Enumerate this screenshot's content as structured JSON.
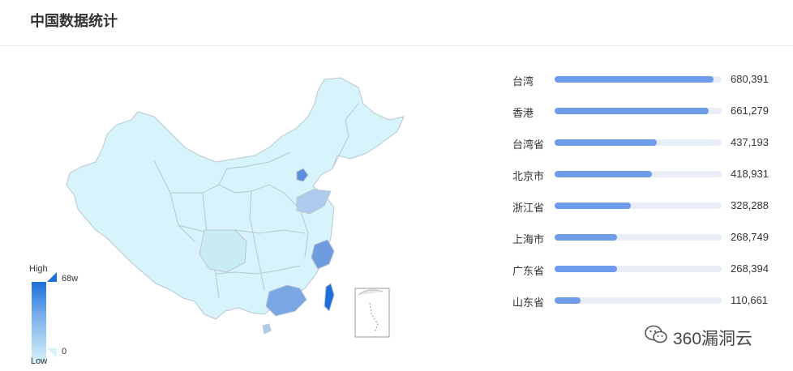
{
  "header": {
    "title": "中国数据统计"
  },
  "legend": {
    "high_label": "High",
    "low_label": "Low",
    "max_value": "68w",
    "min_value": "0"
  },
  "colors": {
    "bar_fill": "#6f9cea",
    "bar_track": "#e9edf6",
    "map_low": "#d7f3fb",
    "map_high": "#1e6fd9"
  },
  "chart_data": {
    "type": "bar",
    "title": "",
    "categories": [
      "台湾",
      "香港",
      "台湾省",
      "北京市",
      "浙江省",
      "上海市",
      "广东省",
      "山东省"
    ],
    "values": [
      680391,
      661279,
      437193,
      418931,
      328288,
      268749,
      268394,
      110661
    ],
    "value_labels": [
      "680,391",
      "661,279",
      "437,193",
      "418,931",
      "328,288",
      "268,749",
      "268,394",
      "110,661"
    ],
    "max": 680391
  },
  "watermark": {
    "text": "360漏洞云",
    "icon": "wechat-icon"
  }
}
